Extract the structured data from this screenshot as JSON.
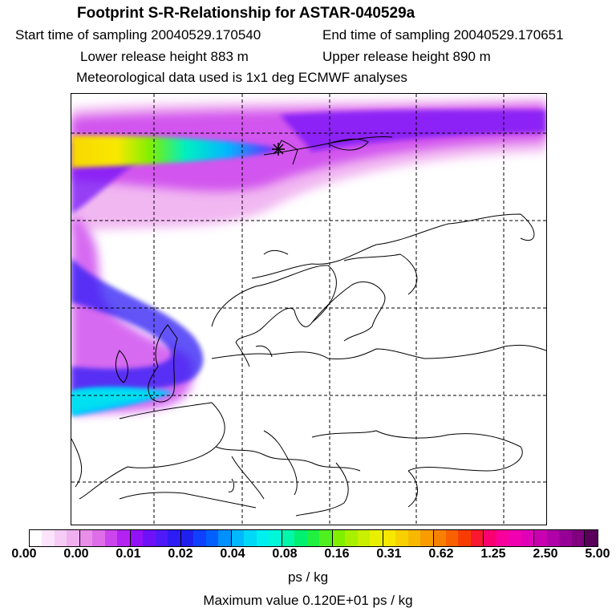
{
  "header": {
    "title": "Footprint S-R-Relationship for ASTAR-040529a",
    "start_time": "Start time of sampling 20040529.170540",
    "end_time": "End time of sampling 20040529.170651",
    "lower_height": "Lower release height  883 m",
    "upper_height": "Upper release height  890 m",
    "met_data": "Meteorological data used is 1x1 deg ECMWF analyses"
  },
  "legend": {
    "ticks": [
      "0.00",
      "0.00",
      "0.01",
      "0.02",
      "0.04",
      "0.08",
      "0.16",
      "0.31",
      "0.62",
      "1.25",
      "2.50",
      "5.00"
    ],
    "colors": [
      "#ffffff",
      "#fbe4fb",
      "#f6cbf6",
      "#f0b0f0",
      "#e88ee8",
      "#dd6ee8",
      "#cc44ee",
      "#b422f2",
      "#9311f6",
      "#6f11f8",
      "#4f1af8",
      "#2d1cf5",
      "#2020ee",
      "#1040ff",
      "#0060ff",
      "#0090ff",
      "#00b8ff",
      "#00d8f8",
      "#00f0f0",
      "#00f8d8",
      "#00f8a8",
      "#00f070",
      "#20f040",
      "#50f020",
      "#80f000",
      "#a8f000",
      "#c8f000",
      "#e8f000",
      "#f8e800",
      "#f8d000",
      "#f8b800",
      "#f89c00",
      "#f88000",
      "#f86000",
      "#f83c00",
      "#f81830",
      "#f80070",
      "#f8009c",
      "#f000b0",
      "#e000b8",
      "#c800b0",
      "#b000a8",
      "#960096",
      "#800080",
      "#5a005a"
    ],
    "unit": "ps / kg",
    "max_value": "Maximum value  0.120E+01 ps / kg"
  }
}
